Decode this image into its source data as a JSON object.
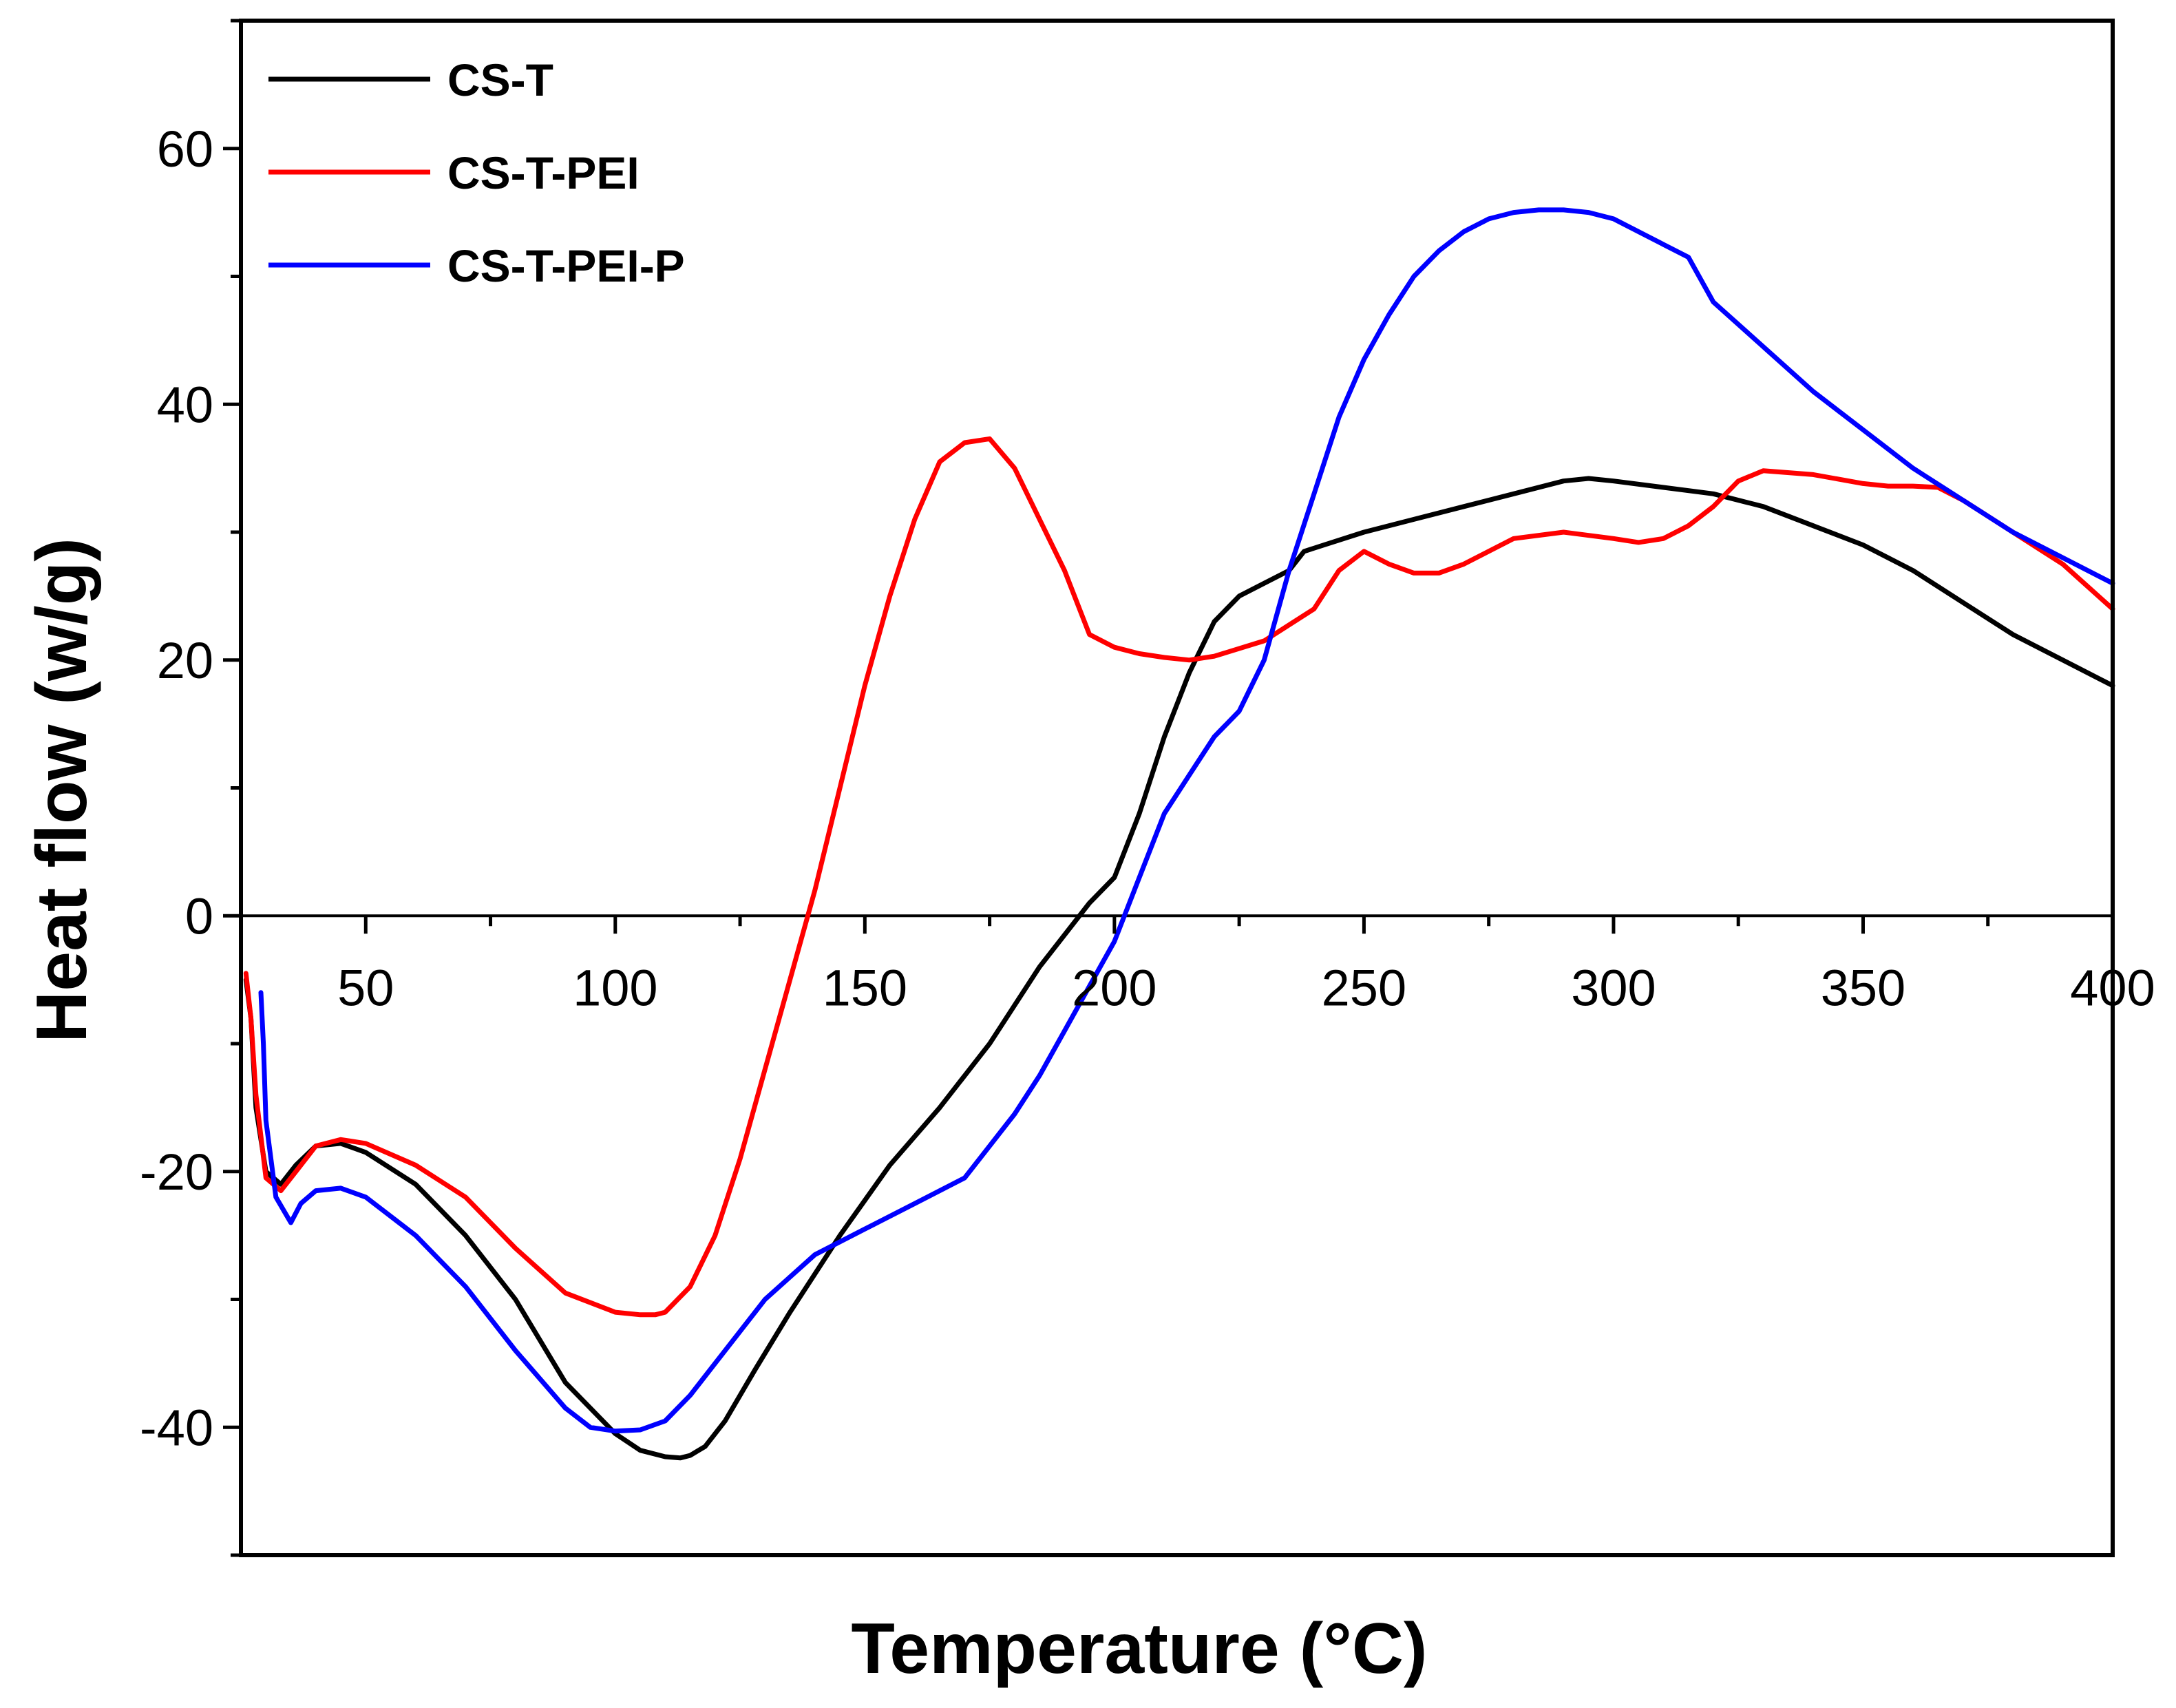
{
  "chart_data": {
    "type": "line",
    "title": "",
    "xlabel": "Temperature (°C)",
    "ylabel": "Heat flow (w/g)",
    "xlim": [
      25,
      400
    ],
    "ylim": [
      -50,
      70
    ],
    "x_ticks": [
      50,
      100,
      150,
      200,
      250,
      300,
      350,
      400
    ],
    "x_tick_labels": [
      "50",
      "100",
      "150",
      "200",
      "250",
      "300",
      "350",
      "400"
    ],
    "x_minor_ticks": [
      75,
      125,
      175,
      225,
      275,
      325,
      375
    ],
    "y_ticks": [
      -40,
      -20,
      0,
      20,
      40,
      60
    ],
    "y_tick_labels": [
      "-40",
      "-20",
      "0",
      "20",
      "40",
      "60"
    ],
    "y_minor_ticks": [
      -50,
      -30,
      -10,
      10,
      30,
      50,
      70
    ],
    "zero_line": 0,
    "legend_position": "top-left",
    "series": [
      {
        "name": "CS-T",
        "color": "#000000",
        "x": [
          26,
          27,
          28,
          30,
          33,
          36,
          40,
          45,
          50,
          60,
          70,
          80,
          90,
          100,
          105,
          110,
          113,
          115,
          118,
          122,
          128,
          135,
          145,
          155,
          165,
          175,
          185,
          195,
          200,
          205,
          210,
          215,
          220,
          225,
          230,
          235,
          238,
          242,
          250,
          260,
          270,
          280,
          290,
          295,
          300,
          310,
          320,
          330,
          340,
          350,
          360,
          370,
          380,
          390,
          400
        ],
        "y": [
          -5,
          -8,
          -15,
          -20,
          -21,
          -19.5,
          -18,
          -17.8,
          -18.5,
          -21,
          -25,
          -30,
          -36.5,
          -40.5,
          -41.8,
          -42.3,
          -42.4,
          -42.2,
          -41.5,
          -39.5,
          -35.5,
          -31,
          -25,
          -19.5,
          -15,
          -10,
          -4,
          1,
          3,
          8,
          14,
          19,
          23,
          25,
          26,
          27,
          28.5,
          29,
          30,
          31,
          32,
          33,
          34,
          34.2,
          34,
          33.5,
          33,
          32,
          30.5,
          29,
          27,
          24.5,
          22,
          20,
          18
        ]
      },
      {
        "name": "CS-T-PEI",
        "color": "#ff0000",
        "x": [
          26,
          27,
          28,
          30,
          33,
          36,
          40,
          45,
          50,
          60,
          70,
          80,
          90,
          100,
          105,
          108,
          110,
          115,
          120,
          125,
          130,
          135,
          140,
          145,
          150,
          155,
          160,
          165,
          170,
          175,
          180,
          185,
          190,
          195,
          200,
          205,
          210,
          215,
          220,
          230,
          240,
          245,
          250,
          255,
          260,
          265,
          270,
          280,
          290,
          300,
          305,
          310,
          315,
          320,
          325,
          330,
          340,
          350,
          355,
          360,
          365,
          370,
          380,
          390,
          400
        ],
        "y": [
          -4.5,
          -8,
          -14,
          -20.5,
          -21.5,
          -20,
          -18,
          -17.5,
          -17.8,
          -19.5,
          -22,
          -26,
          -29.5,
          -31,
          -31.2,
          -31.2,
          -31,
          -29,
          -25,
          -19,
          -12,
          -5,
          2,
          10,
          18,
          25,
          31,
          35.5,
          37,
          37.3,
          35,
          31,
          27,
          22,
          21,
          20.5,
          20.2,
          20,
          20.3,
          21.5,
          24,
          27,
          28.5,
          27.5,
          26.8,
          26.8,
          27.5,
          29.5,
          30,
          29.5,
          29.2,
          29.5,
          30.5,
          32,
          34,
          34.8,
          34.5,
          33.8,
          33.6,
          33.6,
          33.5,
          32.5,
          30,
          27.5,
          24
        ]
      },
      {
        "name": "CS-T-PEI-P",
        "color": "#0000ff",
        "x": [
          29,
          29.5,
          30,
          32,
          35,
          37,
          40,
          45,
          50,
          60,
          70,
          80,
          90,
          95,
          100,
          105,
          110,
          115,
          120,
          125,
          130,
          140,
          150,
          160,
          170,
          175,
          180,
          185,
          190,
          195,
          200,
          205,
          210,
          215,
          220,
          225,
          230,
          235,
          240,
          245,
          250,
          255,
          260,
          265,
          270,
          275,
          280,
          285,
          290,
          295,
          300,
          305,
          310,
          315,
          320,
          330,
          340,
          350,
          360,
          370,
          380,
          390,
          400
        ],
        "y": [
          -6,
          -10,
          -16,
          -22,
          -24,
          -22.5,
          -21.5,
          -21.3,
          -22,
          -25,
          -29,
          -34,
          -38.5,
          -40,
          -40.3,
          -40.2,
          -39.5,
          -37.5,
          -35,
          -32.5,
          -30,
          -26.5,
          -24.5,
          -22.5,
          -20.5,
          -18,
          -15.5,
          -12.5,
          -9,
          -5.5,
          -2,
          3,
          8,
          11,
          14,
          16,
          20,
          27,
          33,
          39,
          43.5,
          47,
          50,
          52,
          53.5,
          54.5,
          55,
          55.2,
          55.2,
          55,
          54.5,
          53.5,
          52.5,
          51.5,
          48,
          44.5,
          41,
          38,
          35,
          32.5,
          30,
          28,
          26
        ]
      }
    ]
  }
}
